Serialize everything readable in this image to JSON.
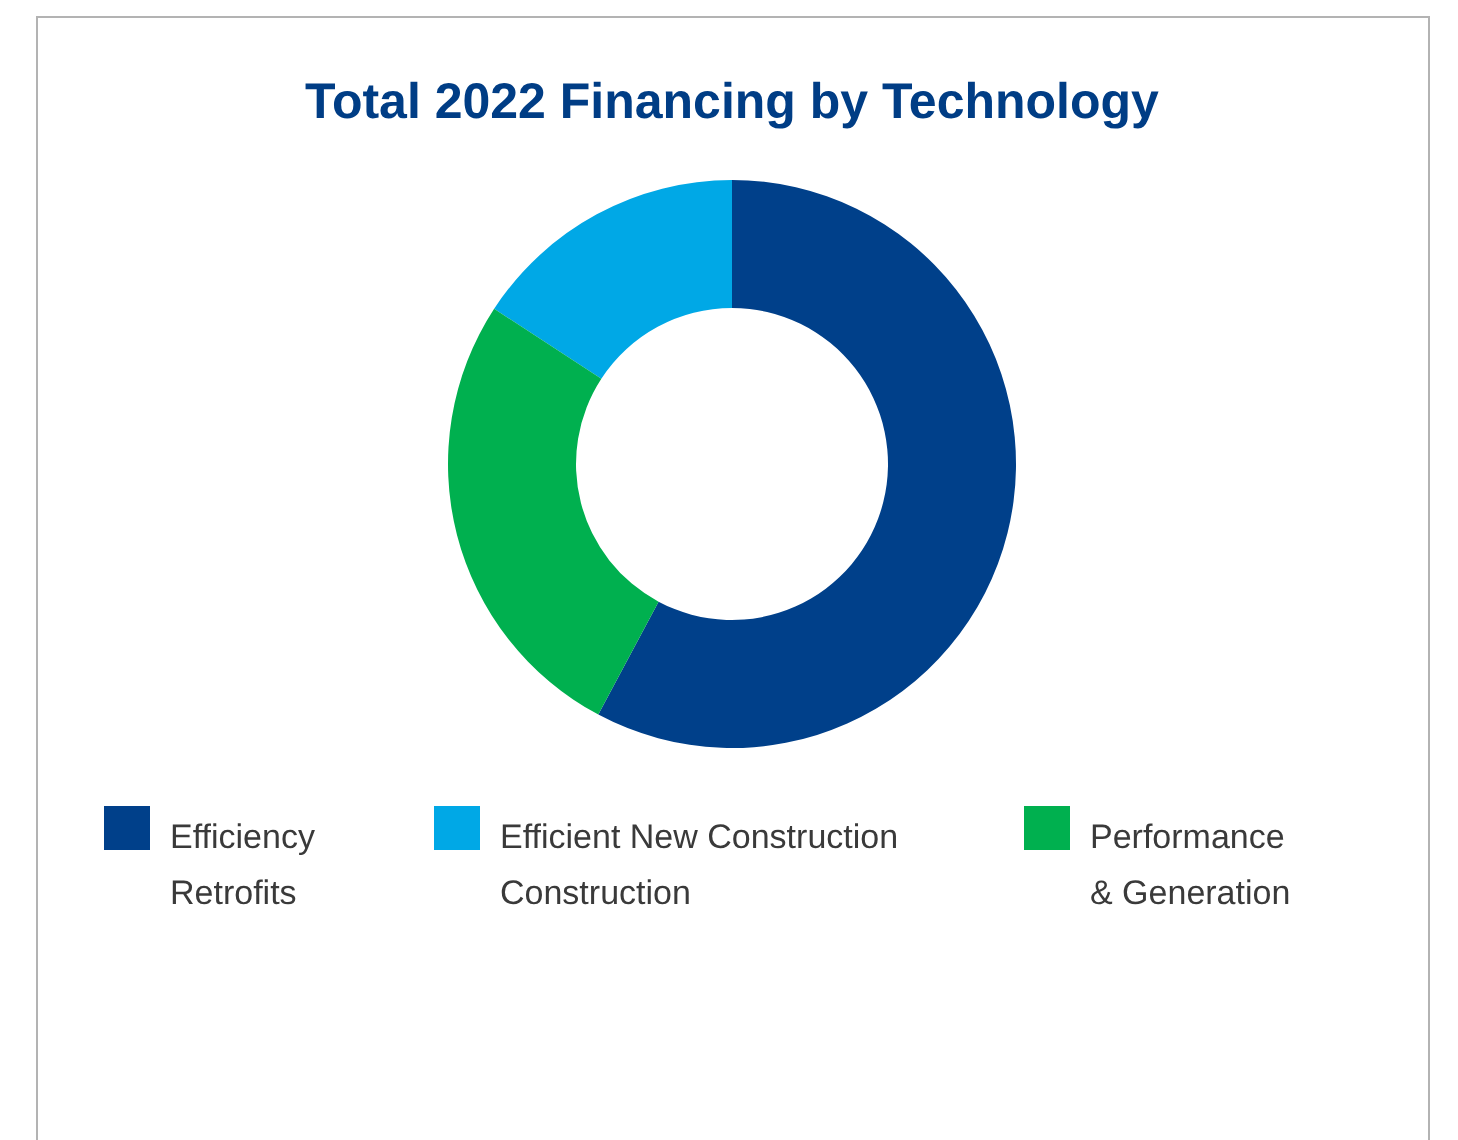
{
  "chart_data": {
    "type": "donut",
    "title": "Total 2022 Financing by Technology",
    "categories": [
      "Efficiency\nRetrofits",
      "Efficient New Construction\nConstruction",
      "Performance\n& Generation"
    ],
    "values": [
      57.8,
      15.8,
      26.4
    ],
    "colors": [
      "#00408a",
      "#00a8e6",
      "#00b04f"
    ],
    "legend": "bottom"
  }
}
